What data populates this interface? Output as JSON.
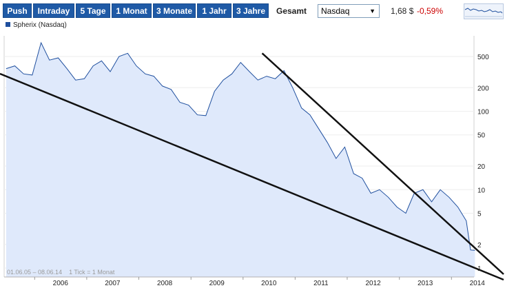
{
  "toolbar": {
    "buttons": [
      {
        "label": "Push",
        "active": false
      },
      {
        "label": "Intraday",
        "active": false
      },
      {
        "label": "5 Tage",
        "active": false
      },
      {
        "label": "1 Monat",
        "active": false
      },
      {
        "label": "3 Monate",
        "active": false
      },
      {
        "label": "1 Jahr",
        "active": false
      },
      {
        "label": "3 Jahre",
        "active": false
      },
      {
        "label": "Gesamt",
        "active": true
      }
    ],
    "exchange": "Nasdaq",
    "price": "1,68 $",
    "change": "-0,59%",
    "colors": {
      "button_bg": "#1f5aa6",
      "change": "#cc0000",
      "line": "#1f4f9e",
      "area": "#dfe9fb"
    }
  },
  "chart_data": {
    "type": "area",
    "legend": "Spherix (Nasdaq)",
    "y_scale": "log",
    "ylim": [
      1,
      1000
    ],
    "y_ticks": [
      1,
      2,
      5,
      10,
      20,
      50,
      100,
      200,
      500
    ],
    "x_tick_labels": [
      "2006",
      "2007",
      "2008",
      "2009",
      "2010",
      "2011",
      "2012",
      "2013",
      "2014"
    ],
    "xlim": [
      "2005-06-01",
      "2014-06-08"
    ],
    "date_range_label": "01.06.05 – 08.06.14",
    "tick_label": "1 Tick = 1 Monat",
    "series": [
      {
        "x": [
          "2005-06",
          "2005-08",
          "2005-10",
          "2005-12",
          "2006-02",
          "2006-04",
          "2006-06",
          "2006-08",
          "2006-10",
          "2006-12",
          "2007-02",
          "2007-04",
          "2007-06",
          "2007-08",
          "2007-10",
          "2007-12",
          "2008-02",
          "2008-04",
          "2008-06",
          "2008-08",
          "2008-10",
          "2008-12",
          "2009-02",
          "2009-04",
          "2009-06",
          "2009-08",
          "2009-10",
          "2009-12",
          "2010-02",
          "2010-04",
          "2010-06",
          "2010-08",
          "2010-10",
          "2010-12",
          "2011-02",
          "2011-04",
          "2011-06",
          "2011-08",
          "2011-10",
          "2011-12",
          "2012-02",
          "2012-04",
          "2012-06",
          "2012-08",
          "2012-10",
          "2012-12",
          "2013-02",
          "2013-04",
          "2013-06",
          "2013-08",
          "2013-10",
          "2013-12",
          "2014-02",
          "2014-04",
          "2014-05",
          "2014-06"
        ],
        "y": [
          350,
          380,
          300,
          290,
          750,
          450,
          480,
          350,
          250,
          260,
          380,
          440,
          320,
          500,
          550,
          380,
          300,
          280,
          210,
          190,
          130,
          120,
          90,
          88,
          180,
          250,
          300,
          420,
          320,
          250,
          280,
          260,
          330,
          200,
          110,
          90,
          60,
          40,
          25,
          35,
          16,
          14,
          9,
          10,
          8,
          6,
          5,
          9,
          10,
          7,
          10,
          8,
          6,
          4,
          1.7,
          1.68
        ]
      }
    ],
    "trendlines": [
      {
        "from": [
          "2005-06",
          280
        ],
        "to": [
          "2014-06",
          1.0
        ]
      },
      {
        "from": [
          "2010-05",
          550
        ],
        "to": [
          "2014-06",
          1.8
        ]
      }
    ]
  }
}
